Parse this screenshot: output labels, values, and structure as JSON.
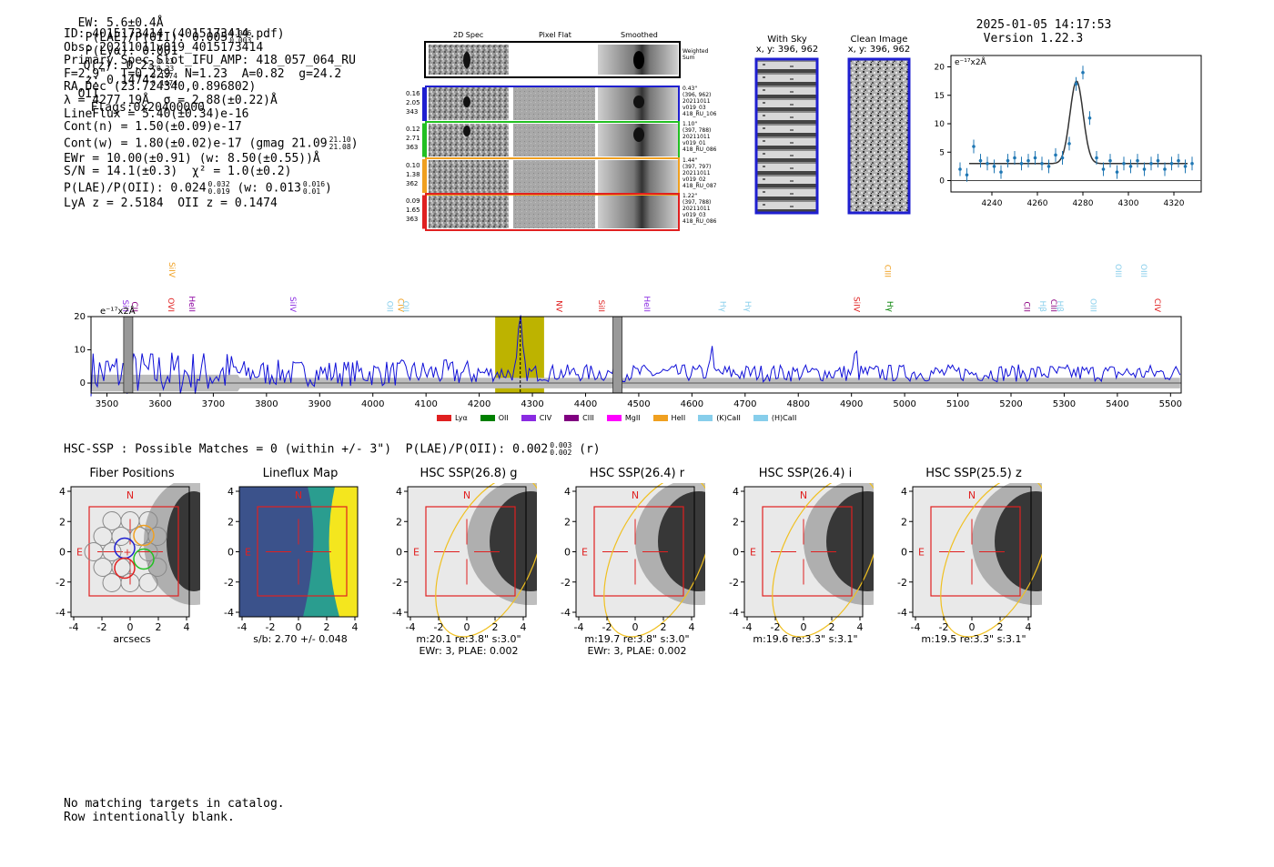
{
  "header": {
    "ew": "EW: 5.6±0.4Å",
    "plae_label": "P(LAE)/P(OII): 0.005",
    "plae_hi": "0.006",
    "plae_lo": "0.003",
    "plya": "P(Lyα): 0.001",
    "qz_label": "Q(z): 0.23",
    "qz_hi": "0.23",
    "qz_lo": "0.23",
    "z_label": "z: 0.1474",
    "z_hi": "0.1474",
    "z_lo": "0.1474",
    "z_line": "OII",
    "flags": "Flags:0x20400000",
    "timestamp": "2025-01-05 14:17:53",
    "version": "Version 1.22.3"
  },
  "info": {
    "id": "ID: 4015173414 (4015173414.pdf)",
    "obs": "Obs: 20211011v019_4015173414",
    "slot": "Primary Spec_Slot_IFU_AMP: 418_057_064_RU",
    "fparams": "F=2.9\"  T=0.229  N=1.23  A=0.82  g=24.2",
    "radec": "RA,Dec (23.724340,0.896802)",
    "lambda": "λ = 4277.19Å  σ = 2.88(±0.22)Å",
    "lineflux": "LineFlux = 5.40(±0.34)e-16",
    "contn": "Cont(n) = 1.50(±0.09)e-17",
    "contw": "Cont(w) = 1.80(±0.02)e-17 (gmag 21.09",
    "gmag_hi": "21.10",
    "gmag_lo": "21.08",
    "contw_end": ")",
    "ewr": "EWr = 10.00(±0.91) (w: 8.50(±0.55))Å",
    "sn": "S/N = 14.1(±0.3)  χ² = 1.0(±0.2)",
    "plae": "P(LAE)/P(OII): 0.024",
    "plae_hi": "0.032",
    "plae_lo": "0.019",
    "plae_w": "(w: 0.013",
    "plae_w_hi": "0.016",
    "plae_w_lo": "0.01",
    "plae_end": ")",
    "lya_oii": "LyA z = 2.5184  OII z = 0.1474"
  },
  "cutouts": {
    "col_titles": [
      "2D Spec",
      "Pixel Flat",
      "Smoothed"
    ],
    "weighted_label": "Weighted Sum",
    "rows": [
      {
        "left": [
          "0.16",
          "2.05",
          "343"
        ],
        "right": [
          "0.43\"",
          "(396, 962)",
          "20211011",
          "v019_03",
          "418_RU_106"
        ]
      },
      {
        "left": [
          "0.12",
          "2.71",
          "363"
        ],
        "right": [
          "1.10\"",
          "(397, 788)",
          "20211011",
          "v019_01",
          "418_RU_086"
        ]
      },
      {
        "left": [
          "0.10",
          "1.38",
          "362"
        ],
        "right": [
          "1.44\"",
          "(397, 797)",
          "20211011",
          "v019_02",
          "418_RU_087"
        ]
      },
      {
        "left": [
          "0.09",
          "1.65",
          "363"
        ],
        "right": [
          "1.22\"",
          "(397, 788)",
          "20211011",
          "v019_03",
          "418_RU_086"
        ]
      }
    ],
    "row_colors": [
      "#1f1fd0",
      "#22c022",
      "#f0a020",
      "#e02020"
    ]
  },
  "sky_panels": {
    "with_sky_title": "With Sky",
    "with_sky_coord": "x, y: 396, 962",
    "clean_title": "Clean Image",
    "clean_coord": "x, y: 396, 962"
  },
  "zoom_chart": {
    "unit_label": "e⁻¹⁷x2Å"
  },
  "hsc": {
    "summary": "HSC-SSP : Possible Matches = 0 (within +/- 3\")  P(LAE)/P(OII): 0.002",
    "summary_hi": "0.003",
    "summary_lo": "0.002",
    "summary_end": "(r)",
    "panels": [
      {
        "title": "Fiber Positions",
        "caption1": "arcsecs",
        "caption2": ""
      },
      {
        "title": "Lineflux Map",
        "caption1": "s/b: 2.70 +/- 0.048",
        "caption2": ""
      },
      {
        "title": "HSC SSP(26.8) g",
        "caption1": "m:20.1  re:3.8\"  s:3.0\"",
        "caption2": "EWr: 3, PLAE: 0.002"
      },
      {
        "title": "HSC SSP(26.4) r",
        "caption1": "m:19.7  re:3.8\"  s:3.0\"",
        "caption2": "EWr: 3, PLAE: 0.002"
      },
      {
        "title": "HSC SSP(26.4) i",
        "caption1": "m:19.6  re:3.3\"  s:3.1\"",
        "caption2": ""
      },
      {
        "title": "HSC SSP(25.5) z",
        "caption1": "m:19.5  re:3.3\"  s:3.1\"",
        "caption2": ""
      }
    ],
    "compass_n": "N",
    "compass_e": "E",
    "ticks": [
      "-4",
      "-2",
      "0",
      "2",
      "4"
    ]
  },
  "footer": {
    "line1": "No matching targets in catalog.",
    "line2": "Row intentionally blank."
  },
  "chart_data": [
    {
      "type": "scatter",
      "title": "",
      "ylabel": "e⁻¹⁷x2Å",
      "xlim": [
        4222,
        4332
      ],
      "ylim": [
        -2,
        22
      ],
      "xticks": [
        4240,
        4260,
        4280,
        4300,
        4320
      ],
      "yticks": [
        0,
        5,
        10,
        15,
        20
      ],
      "x": [
        4226,
        4229,
        4232,
        4235,
        4238,
        4241,
        4244,
        4247,
        4250,
        4253,
        4256,
        4259,
        4262,
        4265,
        4268,
        4271,
        4274,
        4277,
        4280,
        4283,
        4286,
        4289,
        4292,
        4295,
        4298,
        4301,
        4304,
        4307,
        4310,
        4313,
        4316,
        4319,
        4322,
        4325,
        4328
      ],
      "y": [
        2.0,
        1.0,
        6.0,
        3.5,
        3.0,
        2.5,
        1.5,
        3.5,
        4.0,
        3.0,
        3.5,
        4.0,
        3.0,
        2.5,
        4.5,
        4.0,
        6.5,
        17.0,
        19.0,
        11.0,
        4.0,
        2.0,
        3.5,
        1.5,
        3.0,
        2.5,
        3.5,
        2.0,
        3.0,
        3.5,
        2.0,
        3.0,
        3.5,
        2.5,
        3.0
      ],
      "fit_continuum": 3.0,
      "fit_peak": 17.5,
      "fit_center": 4277.2,
      "fit_sigma": 2.88
    },
    {
      "type": "line",
      "title": "",
      "ylabel": "e⁻¹⁷x2Å",
      "xlim": [
        3470,
        5520
      ],
      "ylim": [
        -3,
        20
      ],
      "xticks": [
        3500,
        3600,
        3700,
        3800,
        3900,
        4000,
        4100,
        4200,
        4300,
        4400,
        4500,
        4600,
        4700,
        4800,
        4900,
        5000,
        5100,
        5200,
        5300,
        5400,
        5500
      ],
      "yticks": [
        0,
        10,
        20
      ],
      "highlight_band": [
        4230,
        4322
      ],
      "line_center": 4277.2,
      "masked": [
        3540,
        4460
      ],
      "lines": [
        {
          "label": "SiII",
          "x": 3525,
          "color": "#8a2be2",
          "row": 0
        },
        {
          "label": "CII",
          "x": 3542,
          "color": "#8b0080",
          "row": 0
        },
        {
          "label": "SiIV",
          "x": 3612,
          "color": "#f0a020",
          "row": 1
        },
        {
          "label": "OVI",
          "x": 3610,
          "color": "#e02020",
          "row": 0
        },
        {
          "label": "HeII",
          "x": 3650,
          "color": "#8b00a0",
          "row": 0
        },
        {
          "label": "SiIV",
          "x": 3840,
          "color": "#8a2be2",
          "row": 0
        },
        {
          "label": "OII",
          "x": 4022,
          "color": "#87ceeb",
          "row": 0
        },
        {
          "label": "CIV",
          "x": 4042,
          "color": "#f0a020",
          "row": 0
        },
        {
          "label": "OII",
          "x": 4052,
          "color": "#87ceeb",
          "row": 0
        },
        {
          "label": "NV",
          "x": 4340,
          "color": "#e02020",
          "row": 0
        },
        {
          "label": "SiII",
          "x": 4420,
          "color": "#e02020",
          "row": 0
        },
        {
          "label": "HeII",
          "x": 4505,
          "color": "#8a2be2",
          "row": 0
        },
        {
          "label": "Hγ",
          "x": 4648,
          "color": "#87ceeb",
          "row": 0
        },
        {
          "label": "Hγ",
          "x": 4695,
          "color": "#87ceeb",
          "row": 0
        },
        {
          "label": "SiIV",
          "x": 4900,
          "color": "#e02020",
          "row": 0
        },
        {
          "label": "CIII",
          "x": 4958,
          "color": "#f0a020",
          "row": 1
        },
        {
          "label": "Hγ",
          "x": 4962,
          "color": "#008000",
          "row": 0
        },
        {
          "label": "CII",
          "x": 5220,
          "color": "#8b0080",
          "row": 0
        },
        {
          "label": "Hβ",
          "x": 5250,
          "color": "#87ceeb",
          "row": 0
        },
        {
          "label": "CIII",
          "x": 5270,
          "color": "#8b0080",
          "row": 0
        },
        {
          "label": "Hβ",
          "x": 5282,
          "color": "#87ceeb",
          "row": 0
        },
        {
          "label": "OIII",
          "x": 5345,
          "color": "#87ceeb",
          "row": 0
        },
        {
          "label": "OIII",
          "x": 5392,
          "color": "#87ceeb",
          "row": 1
        },
        {
          "label": "OIII",
          "x": 5440,
          "color": "#87ceeb",
          "row": 1
        },
        {
          "label": "CIV",
          "x": 5465,
          "color": "#e02020",
          "row": 0
        }
      ],
      "legend": [
        {
          "label": "Lyα",
          "color": "#e02020"
        },
        {
          "label": "OII",
          "color": "#008000"
        },
        {
          "label": "CIV",
          "color": "#8a2be2"
        },
        {
          "label": "CIII",
          "color": "#800080"
        },
        {
          "label": "MgII",
          "color": "#ff00ff"
        },
        {
          "label": "HeII",
          "color": "#f0a020"
        },
        {
          "label": "(K)CaII",
          "color": "#87ceeb"
        },
        {
          "label": "(H)CaII",
          "color": "#87ceeb"
        }
      ]
    }
  ]
}
